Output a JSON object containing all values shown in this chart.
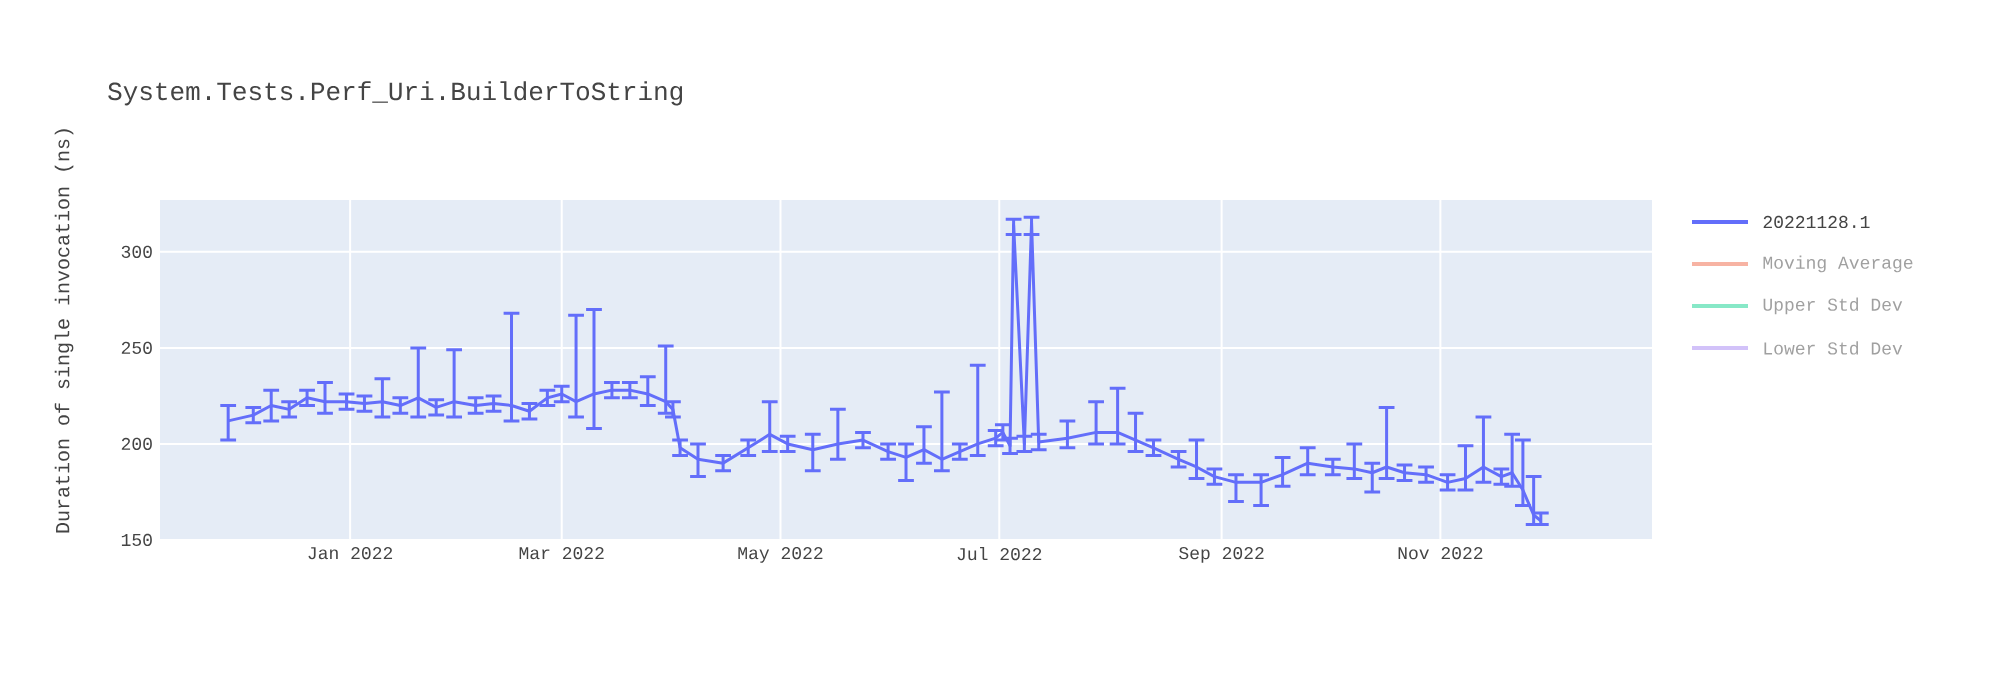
{
  "chart_data": {
    "type": "line",
    "title": "System.Tests.Perf_Uri.BuilderToString",
    "ylabel": "Duration of single invocation (ns)",
    "x": [
      "2021-11-28",
      "2021-12-05",
      "2021-12-10",
      "2021-12-15",
      "2021-12-20",
      "2021-12-25",
      "2021-12-31",
      "2022-01-05",
      "2022-01-10",
      "2022-01-15",
      "2022-01-20",
      "2022-01-25",
      "2022-01-30",
      "2022-02-05",
      "2022-02-10",
      "2022-02-15",
      "2022-02-20",
      "2022-02-25",
      "2022-03-01",
      "2022-03-05",
      "2022-03-10",
      "2022-03-15",
      "2022-03-20",
      "2022-03-25",
      "2022-03-30",
      "2022-04-01",
      "2022-04-03",
      "2022-04-08",
      "2022-04-15",
      "2022-04-22",
      "2022-04-28",
      "2022-05-03",
      "2022-05-10",
      "2022-05-17",
      "2022-05-24",
      "2022-05-31",
      "2022-06-05",
      "2022-06-10",
      "2022-06-15",
      "2022-06-20",
      "2022-06-25",
      "2022-06-30",
      "2022-07-02",
      "2022-07-04",
      "2022-07-05",
      "2022-07-08",
      "2022-07-10",
      "2022-07-12",
      "2022-07-20",
      "2022-07-28",
      "2022-08-03",
      "2022-08-08",
      "2022-08-13",
      "2022-08-20",
      "2022-08-25",
      "2022-08-30",
      "2022-09-05",
      "2022-09-12",
      "2022-09-18",
      "2022-09-25",
      "2022-10-02",
      "2022-10-08",
      "2022-10-13",
      "2022-10-17",
      "2022-10-22",
      "2022-10-28",
      "2022-11-03",
      "2022-11-08",
      "2022-11-13",
      "2022-11-18",
      "2022-11-21",
      "2022-11-24",
      "2022-11-27",
      "2022-11-29"
    ],
    "series": [
      {
        "name": "20221128.1",
        "color": "#636efa",
        "values": [
          212,
          215,
          220,
          218,
          224,
          222,
          222,
          221,
          222,
          220,
          224,
          219,
          222,
          220,
          221,
          220,
          217,
          224,
          226,
          222,
          226,
          228,
          228,
          226,
          222,
          218,
          198,
          192,
          190,
          198,
          205,
          200,
          197,
          200,
          202,
          196,
          193,
          197,
          192,
          196,
          200,
          203,
          206,
          199,
          314,
          200,
          315,
          201,
          203,
          206,
          206,
          202,
          198,
          192,
          188,
          183,
          180,
          180,
          184,
          190,
          188,
          187,
          185,
          188,
          185,
          184,
          180,
          182,
          188,
          183,
          185,
          176,
          163,
          160
        ],
        "errors": [
          [
            202,
            220
          ],
          4,
          [
            212,
            228
          ],
          4,
          4,
          [
            216,
            232
          ],
          4,
          4,
          [
            214,
            234
          ],
          4,
          [
            214,
            250
          ],
          4,
          [
            214,
            249
          ],
          4,
          4,
          [
            212,
            268
          ],
          4,
          4,
          4,
          [
            214,
            267
          ],
          [
            208,
            270
          ],
          4,
          4,
          [
            220,
            235
          ],
          [
            216,
            251
          ],
          4,
          4,
          [
            183,
            200
          ],
          4,
          4,
          [
            196,
            222
          ],
          4,
          [
            186,
            205
          ],
          [
            192,
            218
          ],
          4,
          4,
          [
            181,
            200
          ],
          [
            190,
            209
          ],
          [
            186,
            227
          ],
          4,
          [
            194,
            241
          ],
          4,
          4,
          4,
          [
            309,
            317
          ],
          4,
          [
            309,
            318
          ],
          4,
          [
            198,
            212
          ],
          [
            200,
            222
          ],
          [
            200,
            229
          ],
          [
            196,
            216
          ],
          4,
          4,
          [
            182,
            202
          ],
          4,
          [
            170,
            184
          ],
          [
            168,
            184
          ],
          [
            178,
            193
          ],
          [
            184,
            198
          ],
          4,
          [
            182,
            200
          ],
          [
            175,
            190
          ],
          [
            182,
            219
          ],
          4,
          4,
          4,
          [
            176,
            199
          ],
          [
            180,
            214
          ],
          4,
          [
            178,
            205
          ],
          [
            168,
            202
          ],
          [
            158,
            183
          ],
          [
            158,
            164
          ]
        ]
      },
      {
        "name": "Moving Average",
        "color": "#f7b3a3",
        "values": [
          null,
          null,
          null,
          null,
          null,
          null,
          null,
          null,
          null,
          null,
          null,
          null,
          null,
          null,
          null,
          null,
          null,
          null,
          null,
          null,
          null,
          null,
          null,
          null,
          null,
          null,
          null,
          null,
          null,
          null,
          null,
          null,
          null,
          null,
          null,
          null,
          null,
          null,
          null,
          null,
          null,
          null,
          null,
          null,
          null,
          null,
          null,
          null,
          null,
          null,
          null,
          null,
          null,
          null,
          null,
          null,
          null,
          null,
          null,
          null,
          null,
          null,
          null,
          null,
          null,
          null,
          null,
          null,
          null,
          null,
          null,
          null,
          null,
          null
        ]
      },
      {
        "name": "Upper Std Dev",
        "color": "#87e8c7",
        "values": [
          null,
          null,
          null,
          null,
          null,
          null,
          null,
          null,
          null,
          null,
          null,
          null,
          null,
          null,
          null,
          null,
          null,
          null,
          null,
          null,
          null,
          null,
          null,
          null,
          null,
          null,
          null,
          null,
          null,
          null,
          null,
          null,
          null,
          null,
          null,
          null,
          null,
          null,
          null,
          null,
          null,
          null,
          null,
          null,
          null,
          null,
          null,
          null,
          null,
          null,
          null,
          null,
          null,
          null,
          null,
          null,
          null,
          null,
          null,
          null,
          null,
          null,
          null,
          null,
          null,
          null,
          null,
          null,
          null,
          null,
          null,
          null,
          null,
          null
        ]
      },
      {
        "name": "Lower Std Dev",
        "color": "#d2c2f9",
        "values": [
          null,
          null,
          null,
          null,
          null,
          null,
          null,
          null,
          null,
          null,
          null,
          null,
          null,
          null,
          null,
          null,
          null,
          null,
          null,
          null,
          null,
          null,
          null,
          null,
          null,
          null,
          null,
          null,
          null,
          null,
          null,
          null,
          null,
          null,
          null,
          null,
          null,
          null,
          null,
          null,
          null,
          null,
          null,
          null,
          null,
          null,
          null,
          null,
          null,
          null,
          null,
          null,
          null,
          null,
          null,
          null,
          null,
          null,
          null,
          null,
          null,
          null,
          null,
          null,
          null,
          null,
          null,
          null,
          null,
          null,
          null,
          null,
          null,
          null
        ]
      }
    ],
    "xlim": [
      "2021-11-09",
      "2022-12-30"
    ],
    "xticks": [
      {
        "value": "2022-01-01",
        "label": "Jan 2022"
      },
      {
        "value": "2022-03-01",
        "label": "Mar 2022"
      },
      {
        "value": "2022-05-01",
        "label": "May 2022"
      },
      {
        "value": "2022-07-01",
        "label": "Jul 2022"
      },
      {
        "value": "2022-09-01",
        "label": "Sep 2022"
      },
      {
        "value": "2022-11-01",
        "label": "Nov 2022"
      }
    ],
    "ylim": [
      150,
      327
    ],
    "yticks": [
      150,
      200,
      250,
      300
    ],
    "grid": true,
    "legend": "right",
    "line_style": "solid"
  }
}
